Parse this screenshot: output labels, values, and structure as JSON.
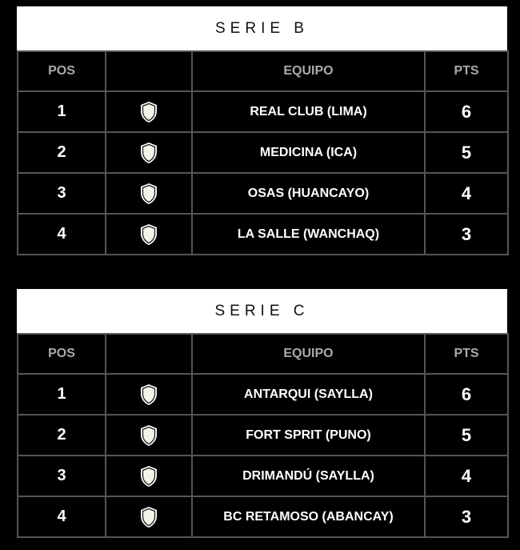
{
  "tables": [
    {
      "title": "SERIE B",
      "headers": {
        "pos": "POS",
        "logo": "",
        "team": "EQUIPO",
        "pts": "PTS"
      },
      "rows": [
        {
          "pos": "1",
          "team": "REAL CLUB (LIMA)",
          "pts": "6",
          "icon": "shield-icon"
        },
        {
          "pos": "2",
          "team": "MEDICINA (ICA)",
          "pts": "5",
          "icon": "shield-icon"
        },
        {
          "pos": "3",
          "team": "OSAS (HUANCAYO)",
          "pts": "4",
          "icon": "shield-icon"
        },
        {
          "pos": "4",
          "team": "LA SALLE (WANCHAQ)",
          "pts": "3",
          "icon": "shield-icon"
        }
      ]
    },
    {
      "title": "SERIE C",
      "headers": {
        "pos": "POS",
        "logo": "",
        "team": "EQUIPO",
        "pts": "PTS"
      },
      "rows": [
        {
          "pos": "1",
          "team": "ANTARQUI (SAYLLA)",
          "pts": "6",
          "icon": "shield-icon"
        },
        {
          "pos": "2",
          "team": "FORT SPRIT (PUNO)",
          "pts": "5",
          "icon": "shield-icon"
        },
        {
          "pos": "3",
          "team": "DRIMANDÚ (SAYLLA)",
          "pts": "4",
          "icon": "shield-icon"
        },
        {
          "pos": "4",
          "team": "BC RETAMOSO (ABANCAY)",
          "pts": "3",
          "icon": "shield-icon"
        }
      ]
    }
  ]
}
